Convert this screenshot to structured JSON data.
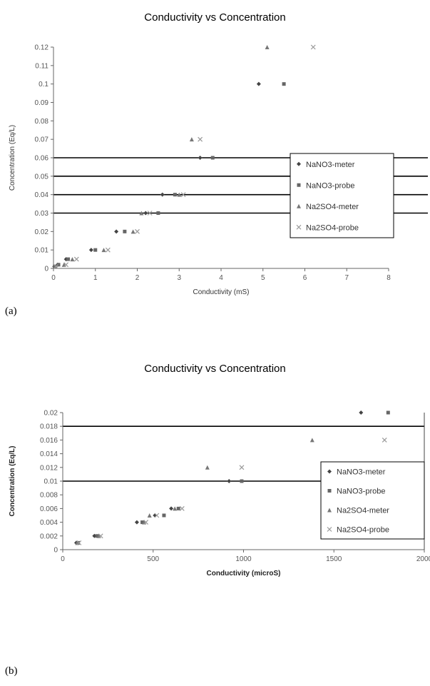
{
  "chart_data": [
    {
      "panel": "(a)",
      "type": "scatter",
      "title": "Conductivity vs Concentration",
      "xlabel": "Conductivity (mS)",
      "ylabel": "Concentration (Eq/L)",
      "xlim": [
        0,
        8
      ],
      "ylim": [
        0,
        0.12
      ],
      "x_ticks": [
        "0",
        "1",
        "2",
        "3",
        "4",
        "5",
        "6",
        "7",
        "8"
      ],
      "y_ticks": [
        "0",
        "0.01",
        "0.02",
        "0.03",
        "0.04",
        "0.05",
        "0.06",
        "0.07",
        "0.08",
        "0.09",
        "0.1",
        "0.11",
        "0.12"
      ],
      "hlines": [
        0.03,
        0.04,
        0.05,
        0.06
      ],
      "grid": false,
      "legend_position": "right",
      "series": [
        {
          "name": "NaNO3-meter",
          "color": "#444444",
          "marker": "diamond",
          "points": [
            [
              0.02,
              0.001
            ],
            [
              0.1,
              0.002
            ],
            [
              0.3,
              0.005
            ],
            [
              0.9,
              0.01
            ],
            [
              1.5,
              0.02
            ],
            [
              2.2,
              0.03
            ],
            [
              2.6,
              0.04
            ],
            [
              3.5,
              0.06
            ],
            [
              4.9,
              0.1
            ]
          ]
        },
        {
          "name": "NaNO3-probe",
          "color": "#666666",
          "marker": "square",
          "points": [
            [
              0.03,
              0.001
            ],
            [
              0.12,
              0.002
            ],
            [
              0.35,
              0.005
            ],
            [
              1.0,
              0.01
            ],
            [
              1.7,
              0.02
            ],
            [
              2.5,
              0.03
            ],
            [
              2.9,
              0.04
            ],
            [
              3.8,
              0.06
            ],
            [
              5.5,
              0.1
            ]
          ]
        },
        {
          "name": "Na2SO4-meter",
          "color": "#777777",
          "marker": "triangle",
          "points": [
            [
              0.05,
              0.001
            ],
            [
              0.25,
              0.002
            ],
            [
              0.45,
              0.005
            ],
            [
              1.2,
              0.01
            ],
            [
              1.9,
              0.02
            ],
            [
              2.1,
              0.03
            ],
            [
              3.0,
              0.04
            ],
            [
              3.3,
              0.07
            ],
            [
              5.1,
              0.12
            ]
          ]
        },
        {
          "name": "Na2SO4-probe",
          "color": "#999999",
          "marker": "x",
          "points": [
            [
              0.06,
              0.001
            ],
            [
              0.3,
              0.002
            ],
            [
              0.55,
              0.005
            ],
            [
              1.3,
              0.01
            ],
            [
              2.0,
              0.02
            ],
            [
              2.3,
              0.03
            ],
            [
              3.1,
              0.04
            ],
            [
              3.5,
              0.07
            ],
            [
              6.2,
              0.12
            ]
          ]
        }
      ]
    },
    {
      "panel": "(b)",
      "type": "scatter",
      "title": "Conductivity vs Concentration",
      "xlabel": "Conductivity (microS)",
      "ylabel": "Concentration (Eq/L)",
      "xlim": [
        0,
        2000
      ],
      "ylim": [
        0,
        0.02
      ],
      "x_ticks": [
        "0",
        "500",
        "1000",
        "1500",
        "2000"
      ],
      "y_ticks": [
        "0",
        "0.002",
        "0.004",
        "0.006",
        "0.008",
        "0.01",
        "0.012",
        "0.014",
        "0.016",
        "0.018",
        "0.02"
      ],
      "hlines": [
        0.01,
        0.018
      ],
      "grid": false,
      "legend_position": "right",
      "series": [
        {
          "name": "NaNO3-meter",
          "color": "#444444",
          "marker": "diamond",
          "points": [
            [
              75,
              0.001
            ],
            [
              175,
              0.002
            ],
            [
              410,
              0.004
            ],
            [
              510,
              0.005
            ],
            [
              600,
              0.006
            ],
            [
              920,
              0.01
            ],
            [
              1650,
              0.02
            ]
          ]
        },
        {
          "name": "NaNO3-probe",
          "color": "#666666",
          "marker": "square",
          "points": [
            [
              85,
              0.001
            ],
            [
              190,
              0.002
            ],
            [
              440,
              0.004
            ],
            [
              560,
              0.005
            ],
            [
              640,
              0.006
            ],
            [
              990,
              0.01
            ],
            [
              1800,
              0.02
            ]
          ]
        },
        {
          "name": "Na2SO4-meter",
          "color": "#777777",
          "marker": "triangle",
          "points": [
            [
              80,
              0.001
            ],
            [
              200,
              0.002
            ],
            [
              450,
              0.004
            ],
            [
              480,
              0.005
            ],
            [
              620,
              0.006
            ],
            [
              800,
              0.012
            ],
            [
              1380,
              0.016
            ]
          ]
        },
        {
          "name": "Na2SO4-probe",
          "color": "#999999",
          "marker": "x",
          "points": [
            [
              90,
              0.001
            ],
            [
              210,
              0.002
            ],
            [
              460,
              0.004
            ],
            [
              520,
              0.005
            ],
            [
              660,
              0.006
            ],
            [
              990,
              0.012
            ],
            [
              1780,
              0.016
            ]
          ]
        }
      ]
    }
  ]
}
